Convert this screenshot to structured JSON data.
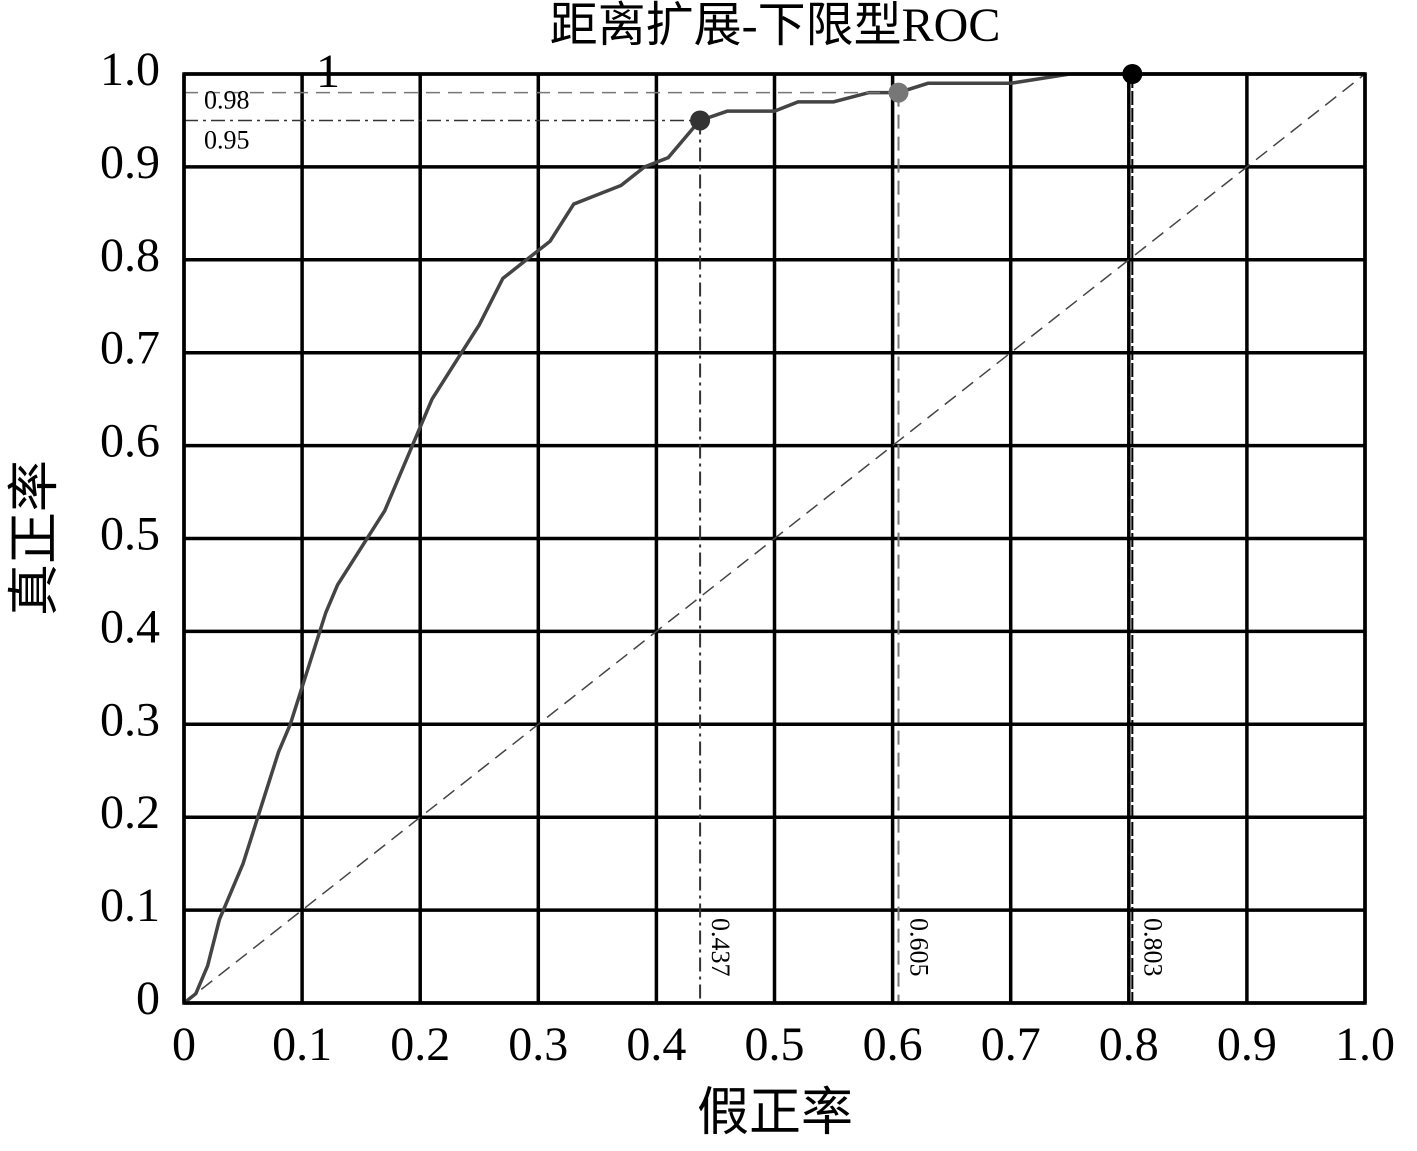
{
  "chart_data": {
    "type": "line",
    "title": "距离扩展-下限型ROC",
    "xlabel": "假正率",
    "ylabel": "真正率",
    "series": [
      {
        "color": "#444444",
        "x": [
          0,
          0.01,
          0.02,
          0.03,
          0.04,
          0.05,
          0.06,
          0.07,
          0.08,
          0.09,
          0.1,
          0.11,
          0.12,
          0.13,
          0.15,
          0.17,
          0.19,
          0.2,
          0.21,
          0.23,
          0.25,
          0.27,
          0.29,
          0.31,
          0.33,
          0.35,
          0.37,
          0.39,
          0.41,
          0.43,
          0.437,
          0.46,
          0.5,
          0.52,
          0.55,
          0.58,
          0.605,
          0.63,
          0.7,
          0.75,
          0.803,
          1
        ],
        "values": [
          0,
          0.01,
          0.04,
          0.09,
          0.12,
          0.15,
          0.19,
          0.23,
          0.27,
          0.3,
          0.34,
          0.38,
          0.42,
          0.45,
          0.49,
          0.53,
          0.59,
          0.62,
          0.65,
          0.69,
          0.73,
          0.78,
          0.8,
          0.82,
          0.86,
          0.87,
          0.88,
          0.9,
          0.91,
          0.94,
          0.95,
          0.96,
          0.96,
          0.97,
          0.97,
          0.98,
          0.98,
          0.99,
          0.99,
          1,
          1,
          1
        ]
      }
    ],
    "points": [
      {
        "x": 0.437,
        "y": 0.95,
        "color": "#333333"
      },
      {
        "x": 0.605,
        "y": 0.98,
        "color": "#777777"
      },
      {
        "x": 0.803,
        "y": 1,
        "color": "#000000"
      }
    ],
    "xlim": [
      0,
      1
    ],
    "ylim": [
      0,
      1
    ],
    "xticks": [
      0,
      0.1,
      0.2,
      0.3,
      0.4,
      0.5,
      0.6,
      0.7,
      0.8,
      0.9,
      {
        "value": 1,
        "label": "1.0"
      }
    ],
    "yticks": [
      0,
      0.1,
      0.2,
      0.3,
      0.4,
      0.5,
      0.6,
      0.7,
      0.8,
      0.9,
      {
        "value": 1,
        "label": "1.0"
      }
    ],
    "grid": true
  }
}
